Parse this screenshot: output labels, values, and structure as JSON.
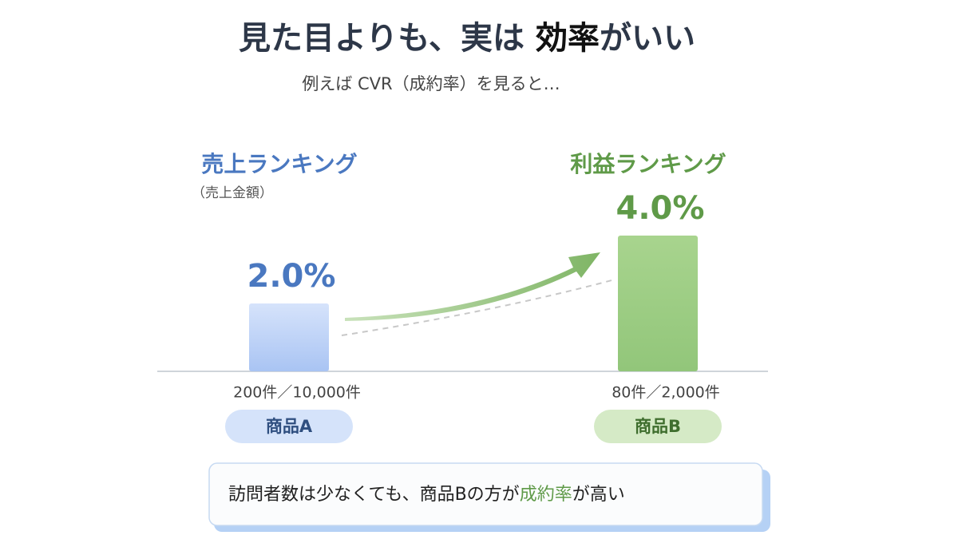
{
  "header": {
    "title": [
      "見た目よりも、実は ",
      "効率",
      "がいい"
    ],
    "subtitle": "例えば CVR（成約率）を見ると…"
  },
  "panels": [
    {
      "heading": "売上ランキング",
      "note": "（売上金額）",
      "value": 2.0,
      "value_label": "2.0%",
      "counts": "200件／10,000件",
      "product": "商品A"
    },
    {
      "heading": "利益ランキング",
      "value": 4.0,
      "value_label": "4.0%",
      "counts": "80件／2,000件",
      "product": "商品B"
    }
  ],
  "footer": {
    "text": [
      "訪問者数は少なくても、商品Bの方が",
      "成約率",
      "が高い"
    ]
  }
}
